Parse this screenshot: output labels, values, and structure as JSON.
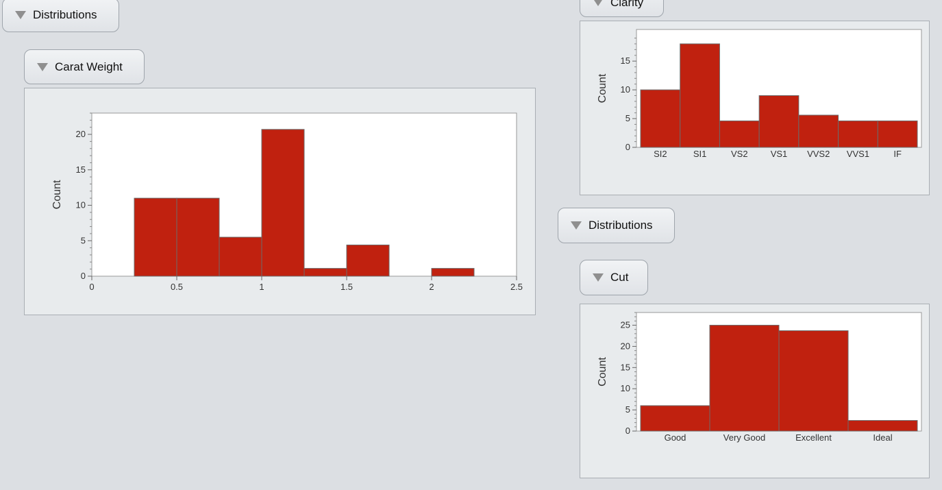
{
  "outline": {
    "top_left_title": "Distributions",
    "carat_title": "Carat Weight",
    "clarity_title": "Clarity",
    "right_distributions_title": "Distributions",
    "cut_title": "Cut"
  },
  "colors": {
    "bar_fill": "#c0210f",
    "bar_stroke": "#6b6b6b",
    "plot_bg": "#ffffff",
    "panel_bg": "#e8ebed"
  },
  "icons": {
    "disclosure": "triangle-down-icon"
  },
  "chart_data": [
    {
      "id": "carat",
      "type": "bar",
      "title": "Carat Weight",
      "ylabel": "Count",
      "xlabel": "",
      "bins": [
        [
          0.25,
          0.5
        ],
        [
          0.5,
          0.75
        ],
        [
          0.75,
          1.0
        ],
        [
          1.0,
          1.25
        ],
        [
          1.25,
          1.5
        ],
        [
          1.5,
          1.75
        ],
        [
          2.0,
          2.25
        ]
      ],
      "values": [
        11,
        11,
        5.5,
        20.7,
        1.1,
        4.4,
        1.1
      ],
      "xlim": [
        0,
        2.5
      ],
      "xticks": [
        "0",
        "0.5",
        "1",
        "1.5",
        "2",
        "2.5"
      ],
      "ylim": [
        0,
        23
      ],
      "yticks": [
        "0",
        "5",
        "10",
        "15",
        "20"
      ],
      "grid": false
    },
    {
      "id": "clarity",
      "type": "bar",
      "title": "Clarity",
      "ylabel": "Count",
      "xlabel": "",
      "categories": [
        "SI2",
        "SI1",
        "VS2",
        "VS1",
        "VVS2",
        "VVS1",
        "IF"
      ],
      "values": [
        10,
        18,
        4.6,
        9,
        5.6,
        4.6,
        4.6
      ],
      "ylim": [
        0,
        20.5
      ],
      "yticks": [
        "0",
        "5",
        "10",
        "15"
      ],
      "grid": false
    },
    {
      "id": "cut",
      "type": "bar",
      "title": "Cut",
      "ylabel": "Count",
      "xlabel": "",
      "categories": [
        "Good",
        "Very Good",
        "Excellent",
        "Ideal"
      ],
      "values": [
        6,
        25,
        23.7,
        2.5
      ],
      "ylim": [
        0,
        28
      ],
      "yticks": [
        "0",
        "5",
        "10",
        "15",
        "20",
        "25"
      ],
      "grid": false
    }
  ]
}
